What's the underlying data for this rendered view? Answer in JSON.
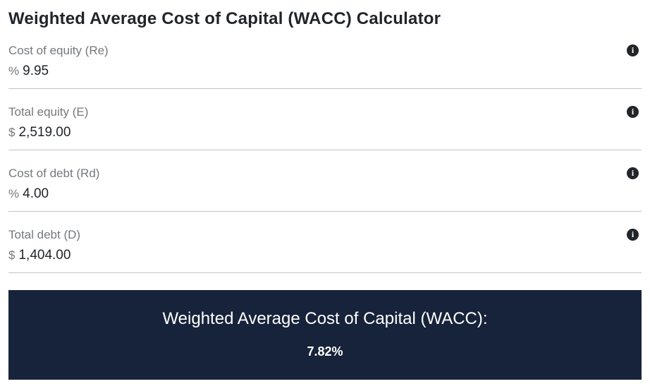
{
  "title": "Weighted Average Cost of Capital (WACC) Calculator",
  "fields": [
    {
      "label": "Cost of equity (Re)",
      "prefix": "%",
      "value": "9.95"
    },
    {
      "label": "Total equity (E)",
      "prefix": "$",
      "value": "2,519.00"
    },
    {
      "label": "Cost of debt (Rd)",
      "prefix": "%",
      "value": "4.00"
    },
    {
      "label": "Total debt (D)",
      "prefix": "$",
      "value": "1,404.00"
    }
  ],
  "icons": {
    "info_glyph": "i"
  },
  "result": {
    "heading": "Weighted Average Cost of Capital (WACC):",
    "value": "7.82%"
  },
  "colors": {
    "result_background": "#17233a",
    "title_text": "#212529",
    "label_text": "#75787c"
  }
}
